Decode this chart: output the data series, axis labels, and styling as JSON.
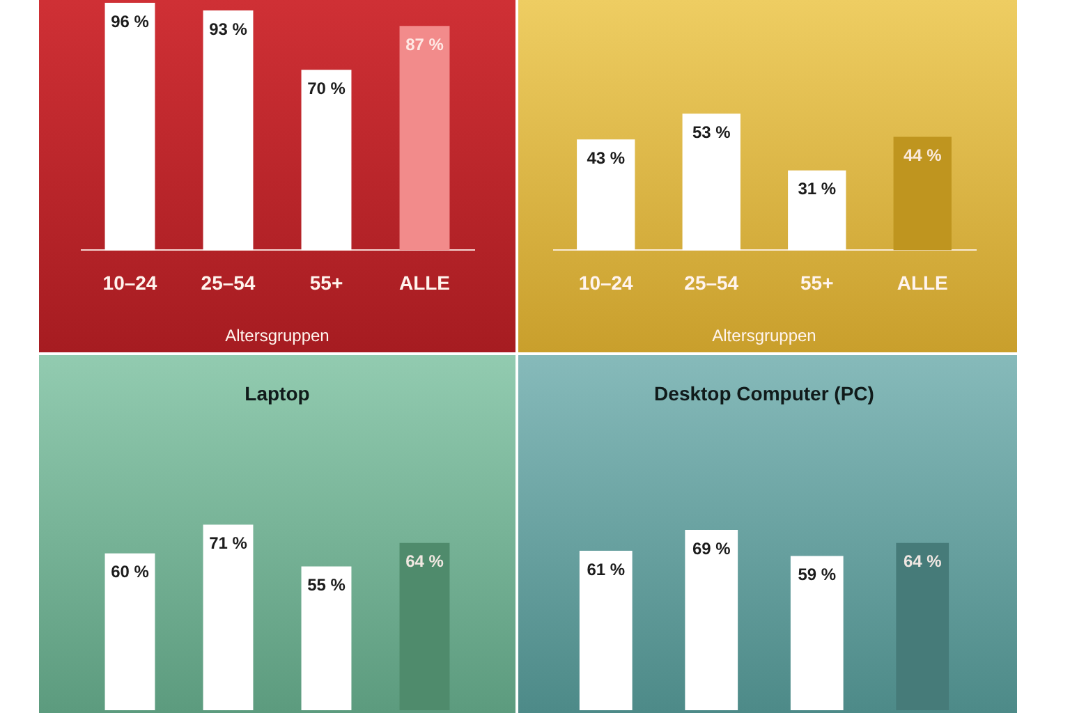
{
  "chart_data": [
    {
      "type": "bar",
      "categories": [
        "10–24",
        "25–54",
        "55+",
        "ALLE"
      ],
      "xlabel": "Altersgruppen",
      "values": [
        96,
        93,
        70,
        87
      ],
      "colors": [
        "#ffffff",
        "#ffffff",
        "#ffffff",
        "#f28b8b"
      ],
      "value_labels": [
        "96 %",
        "93 %",
        "70 %",
        "87 %"
      ],
      "tick_labels": "x"
    },
    {
      "type": "bar",
      "categories": [
        "10–24",
        "25–54",
        "55+",
        "ALLE"
      ],
      "xlabel": "Altersgruppen",
      "values": [
        43,
        53,
        31,
        44
      ],
      "colors": [
        "#ffffff",
        "#ffffff",
        "#ffffff",
        "#bf951f"
      ],
      "value_labels": [
        "43 %",
        "53 %",
        "31 %",
        "44 %"
      ],
      "tick_labels": "x"
    },
    {
      "type": "bar",
      "title": "Laptop",
      "categories": [
        null,
        null,
        null,
        null
      ],
      "values": [
        60,
        71,
        55,
        64
      ],
      "colors": [
        "#ffffff",
        "#ffffff",
        "#ffffff",
        "#4f8b6c"
      ],
      "value_labels": [
        "60 %",
        "71 %",
        "55 %",
        "64 %"
      ],
      "tick_labels": false
    },
    {
      "type": "bar",
      "title": "Desktop Computer (PC)",
      "categories": [
        null,
        null,
        null,
        null
      ],
      "values": [
        61,
        69,
        59,
        64
      ],
      "colors": [
        "#ffffff",
        "#ffffff",
        "#ffffff",
        "#467b79"
      ],
      "value_labels": [
        "61 %",
        "69 %",
        "59 %",
        "64 %"
      ],
      "tick_labels": false
    }
  ]
}
